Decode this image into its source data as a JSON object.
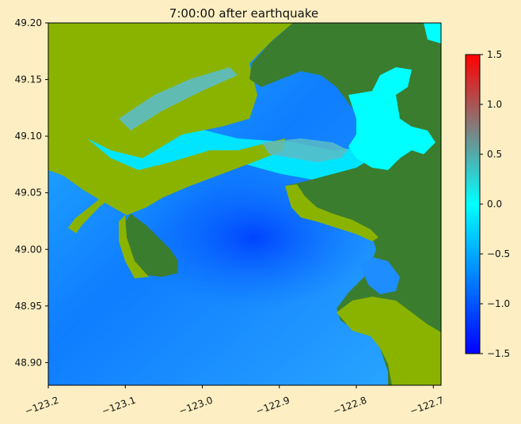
{
  "chart_data": {
    "type": "heatmap",
    "title": "7:00:00 after earthquake",
    "xlabel": "",
    "ylabel": "",
    "xlim": [
      -123.2,
      -122.69
    ],
    "ylim": [
      48.88,
      49.2
    ],
    "x_ticks": [
      -123.2,
      -123.1,
      -123.0,
      -122.9,
      -122.8,
      -122.7
    ],
    "x_tick_labels": [
      "−123.2",
      "−123.1",
      "−123.0",
      "−122.9",
      "−122.8",
      "−122.7"
    ],
    "y_ticks": [
      48.9,
      48.95,
      49.0,
      49.05,
      49.1,
      49.15,
      49.2
    ],
    "y_tick_labels": [
      "48.90",
      "48.95",
      "49.00",
      "49.05",
      "49.10",
      "49.15",
      "49.20"
    ],
    "grid": false,
    "colorbar": {
      "min": -1.5,
      "max": 1.5,
      "ticks": [
        1.5,
        1.0,
        0.5,
        0.0,
        -0.5,
        -1.0,
        -1.5
      ],
      "tick_labels": [
        "1.5",
        "1.0",
        "0.5",
        "0.0",
        "−0.5",
        "−1.0",
        "−1.5"
      ],
      "colors": [
        "#0000ff",
        "#00ffff",
        "#ff0000"
      ]
    },
    "land_colors": {
      "lowland": "#8ab300",
      "upland": "#3b7d2f"
    }
  }
}
